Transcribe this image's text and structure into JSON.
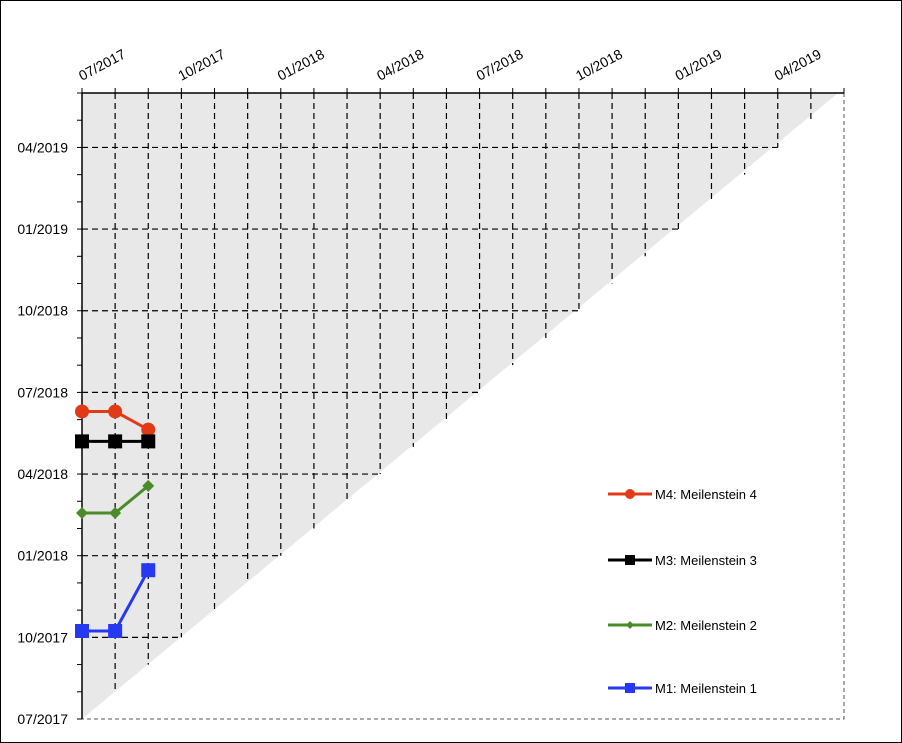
{
  "chart_data": {
    "type": "line",
    "chart_subtype": "milestone-trend-analysis",
    "title": "",
    "xlabel": "",
    "ylabel": "",
    "x_axis_position": "top",
    "x_ticks": [
      "07/2017",
      "10/2017",
      "01/2018",
      "04/2018",
      "07/2018",
      "10/2018",
      "01/2019",
      "04/2019"
    ],
    "y_ticks": [
      "07/2017",
      "10/2017",
      "01/2018",
      "04/2018",
      "07/2018",
      "10/2018",
      "01/2019",
      "04/2019"
    ],
    "xlim": [
      "2017-07",
      "2019-06"
    ],
    "ylim": [
      "2017-07",
      "2019-06"
    ],
    "grid": "dashed, monthly",
    "shaded_region": "above diagonal",
    "legend_position": "right",
    "series": [
      {
        "name": "M4: Meilenstein 4",
        "color": "#e03a16",
        "marker": "circle",
        "x": [
          "2017-07",
          "2017-08",
          "2017-09"
        ],
        "y": [
          "2018-06-10",
          "2018-06-10",
          "2018-05-20"
        ]
      },
      {
        "name": "M3: Meilenstein 3",
        "color": "#000000",
        "marker": "square",
        "x": [
          "2017-07",
          "2017-08",
          "2017-09"
        ],
        "y": [
          "2018-05-07",
          "2018-05-07",
          "2018-05-07"
        ]
      },
      {
        "name": "M2: Meilenstein 2",
        "color": "#4a8c2a",
        "marker": "diamond",
        "x": [
          "2017-07",
          "2017-08",
          "2017-09"
        ],
        "y": [
          "2018-02-18",
          "2018-02-18",
          "2018-03-18"
        ]
      },
      {
        "name": "M1: Meilenstein 1",
        "color": "#2638f0",
        "marker": "square",
        "x": [
          "2017-07",
          "2017-08",
          "2017-09"
        ],
        "y": [
          "2017-10-08",
          "2017-10-08",
          "2017-12-15"
        ]
      }
    ]
  }
}
